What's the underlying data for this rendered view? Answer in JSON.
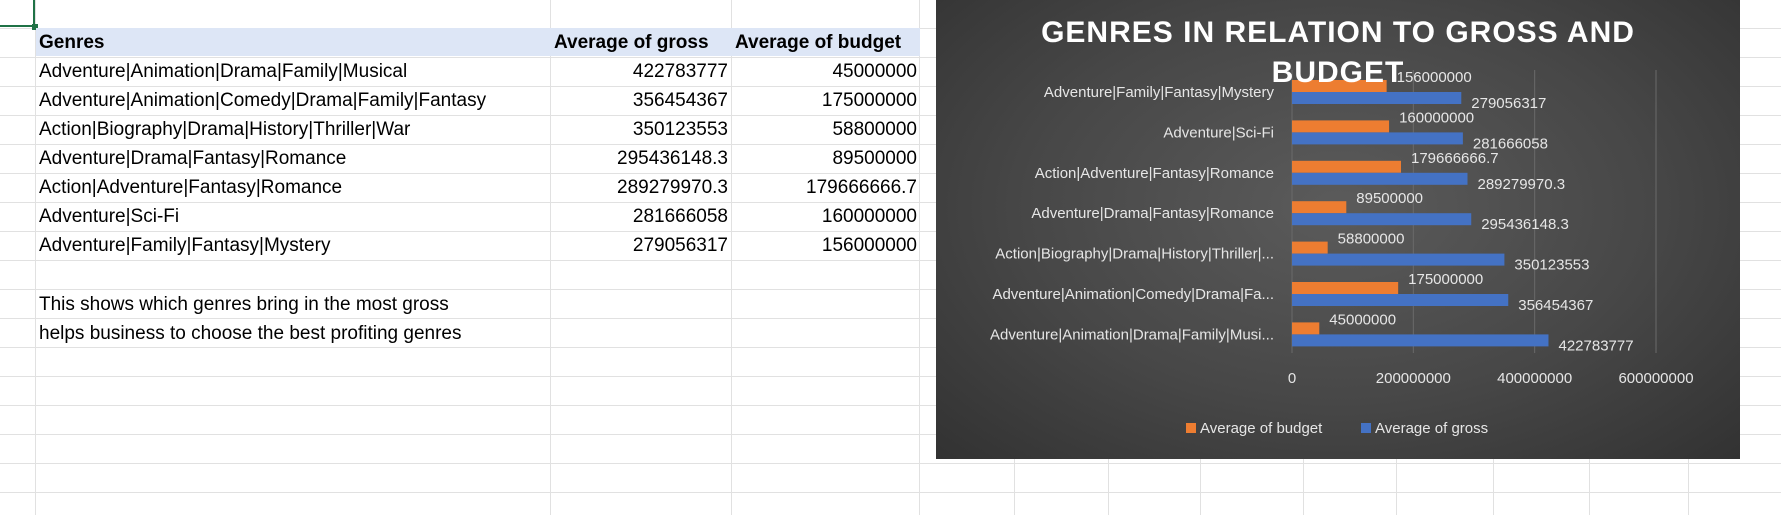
{
  "table": {
    "headers": [
      "Genres",
      "Average of gross",
      "Average of budget"
    ],
    "rows": [
      [
        "Adventure|Animation|Drama|Family|Musical",
        "422783777",
        "45000000"
      ],
      [
        "Adventure|Animation|Comedy|Drama|Family|Fantasy",
        "356454367",
        "175000000"
      ],
      [
        "Action|Biography|Drama|History|Thriller|War",
        "350123553",
        "58800000"
      ],
      [
        "Adventure|Drama|Fantasy|Romance",
        "295436148.3",
        "89500000"
      ],
      [
        "Action|Adventure|Fantasy|Romance",
        "289279970.3",
        "179666666.7"
      ],
      [
        "Adventure|Sci-Fi",
        "281666058",
        "160000000"
      ],
      [
        "Adventure|Family|Fantasy|Mystery",
        "279056317",
        "156000000"
      ]
    ]
  },
  "notes": {
    "line1": "This shows which genres bring in the most gross",
    "line2": "helps business to choose the best profiting genres"
  },
  "chart_data": {
    "type": "bar",
    "orientation": "horizontal",
    "title": "GENRES IN RELATION TO GROSS AND BUDGET",
    "categories": [
      "Adventure|Family|Fantasy|Mystery",
      "Adventure|Sci-Fi",
      "Action|Adventure|Fantasy|Romance",
      "Adventure|Drama|Fantasy|Romance",
      "Action|Biography|Drama|History|Thriller|...",
      "Adventure|Animation|Comedy|Drama|Fa...",
      "Adventure|Animation|Drama|Family|Musi..."
    ],
    "series": [
      {
        "name": "Average of budget",
        "color": "#ed7d31",
        "values": [
          156000000,
          160000000,
          179666666.7,
          89500000,
          58800000,
          175000000,
          45000000
        ],
        "labels": [
          "156000000",
          "160000000",
          "179666666.7",
          "89500000",
          "58800000",
          "175000000",
          "45000000"
        ]
      },
      {
        "name": "Average of gross",
        "color": "#4472c4",
        "values": [
          279056317,
          281666058,
          289279970.3,
          295436148.3,
          350123553,
          356454367,
          422783777
        ],
        "labels": [
          "279056317",
          "281666058",
          "289279970.3",
          "295436148.3",
          "350123553",
          "356454367",
          "422783777"
        ]
      }
    ],
    "xlim": [
      0,
      600000000
    ],
    "xticks": [
      0,
      200000000,
      400000000,
      600000000
    ],
    "xtick_labels": [
      "0",
      "200000000",
      "400000000",
      "600000000"
    ],
    "grid": true,
    "legend_position": "bottom"
  }
}
